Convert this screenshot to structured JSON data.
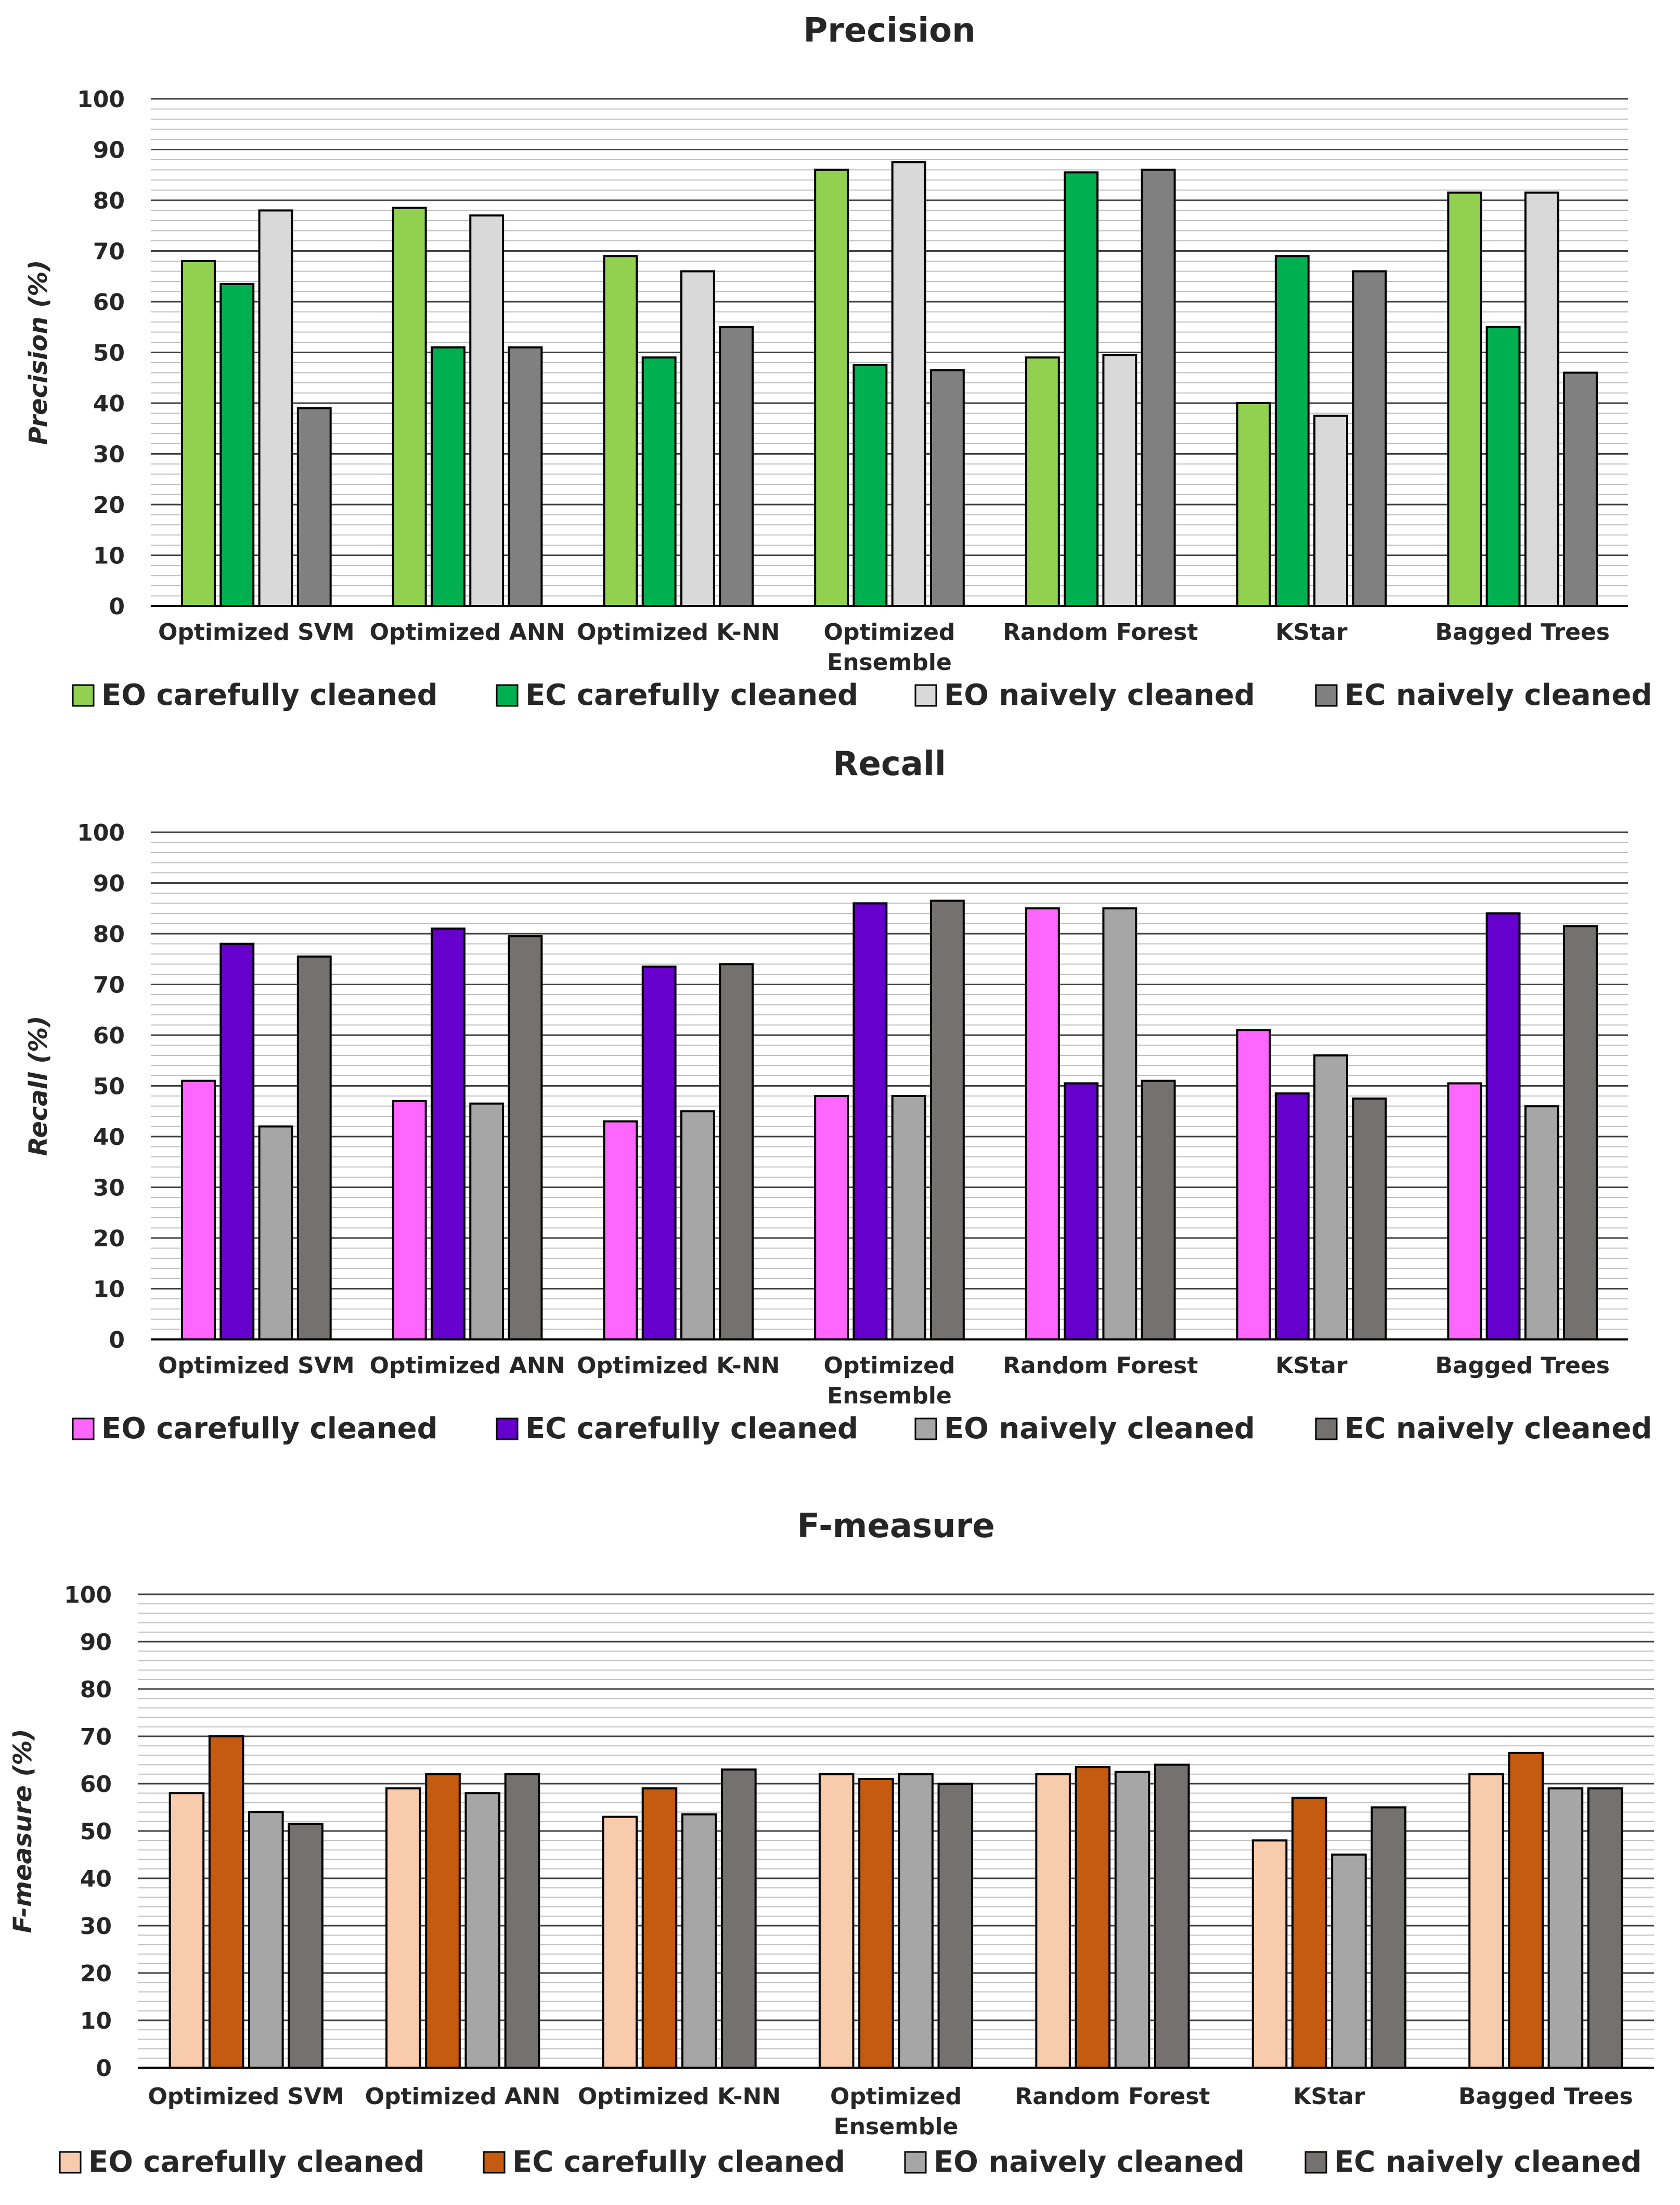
{
  "chart_data": [
    {
      "type": "bar",
      "title": "Precision",
      "xlabel": "",
      "ylabel": "Precision (%)",
      "ylim": [
        0,
        100
      ],
      "yticks": [
        "0",
        "10",
        "20",
        "30",
        "40",
        "50",
        "60",
        "70",
        "80",
        "90",
        "100"
      ],
      "grid": true,
      "legend_position": "bottom",
      "categories": [
        [
          "Optimized SVM"
        ],
        [
          "Optimized ANN"
        ],
        [
          "Optimized K-NN"
        ],
        [
          "Optimized",
          "Ensemble"
        ],
        [
          "Random Forest"
        ],
        [
          "KStar"
        ],
        [
          "Bagged Trees"
        ]
      ],
      "series": [
        {
          "name": "EO carefully cleaned",
          "color": "#92d050",
          "values": [
            68,
            78.5,
            69,
            86,
            49,
            40,
            81.5
          ]
        },
        {
          "name": "EC carefully cleaned",
          "color": "#00b050",
          "values": [
            63.5,
            51,
            49,
            47.5,
            85.5,
            69,
            55
          ]
        },
        {
          "name": "EO naively cleaned",
          "color": "#d9d9d9",
          "values": [
            78,
            77,
            66,
            87.5,
            49.5,
            37.5,
            81.5
          ]
        },
        {
          "name": "EC naively cleaned",
          "color": "#808080",
          "values": [
            39,
            51,
            55,
            46.5,
            86,
            66,
            46
          ]
        }
      ]
    },
    {
      "type": "bar",
      "title": "Recall",
      "xlabel": "",
      "ylabel": "Recall (%)",
      "ylim": [
        0,
        100
      ],
      "yticks": [
        "0",
        "10",
        "20",
        "30",
        "40",
        "50",
        "60",
        "70",
        "80",
        "90",
        "100"
      ],
      "grid": true,
      "legend_position": "bottom",
      "categories": [
        [
          "Optimized SVM"
        ],
        [
          "Optimized ANN"
        ],
        [
          "Optimized K-NN"
        ],
        [
          "Optimized",
          "Ensemble"
        ],
        [
          "Random Forest"
        ],
        [
          "KStar"
        ],
        [
          "Bagged Trees"
        ]
      ],
      "series": [
        {
          "name": "EO carefully cleaned",
          "color": "#ff66ff",
          "values": [
            51,
            47,
            43,
            48,
            85,
            61,
            50.5
          ]
        },
        {
          "name": "EC carefully cleaned",
          "color": "#6600cc",
          "values": [
            78,
            81,
            73.5,
            86,
            50.5,
            48.5,
            84
          ]
        },
        {
          "name": "EO naively cleaned",
          "color": "#a6a6a6",
          "values": [
            42,
            46.5,
            45,
            48,
            85,
            56,
            46
          ]
        },
        {
          "name": "EC naively cleaned",
          "color": "#767171",
          "values": [
            75.5,
            79.5,
            74,
            86.5,
            51,
            47.5,
            81.5
          ]
        }
      ]
    },
    {
      "type": "bar",
      "title": "F-measure",
      "xlabel": "",
      "ylabel": "F-measure (%)",
      "ylim": [
        0,
        100
      ],
      "yticks": [
        "0",
        "10",
        "20",
        "30",
        "40",
        "50",
        "60",
        "70",
        "80",
        "90",
        "100"
      ],
      "grid": true,
      "legend_position": "bottom",
      "categories": [
        [
          "Optimized SVM"
        ],
        [
          "Optimized ANN"
        ],
        [
          "Optimized K-NN"
        ],
        [
          "Optimized",
          "Ensemble"
        ],
        [
          "Random Forest"
        ],
        [
          "KStar"
        ],
        [
          "Bagged Trees"
        ]
      ],
      "series": [
        {
          "name": "EO carefully cleaned",
          "color": "#f8cbad",
          "values": [
            58,
            59,
            53,
            62,
            62,
            48,
            62
          ]
        },
        {
          "name": "EC carefully cleaned",
          "color": "#c55a11",
          "values": [
            70,
            62,
            59,
            61,
            63.5,
            57,
            66.5
          ]
        },
        {
          "name": "EO naively cleaned",
          "color": "#a6a6a6",
          "values": [
            54,
            58,
            53.5,
            62,
            62.5,
            45,
            59
          ]
        },
        {
          "name": "EC naively cleaned",
          "color": "#767171",
          "values": [
            51.5,
            62,
            63,
            60,
            64,
            55,
            59
          ]
        }
      ]
    }
  ]
}
